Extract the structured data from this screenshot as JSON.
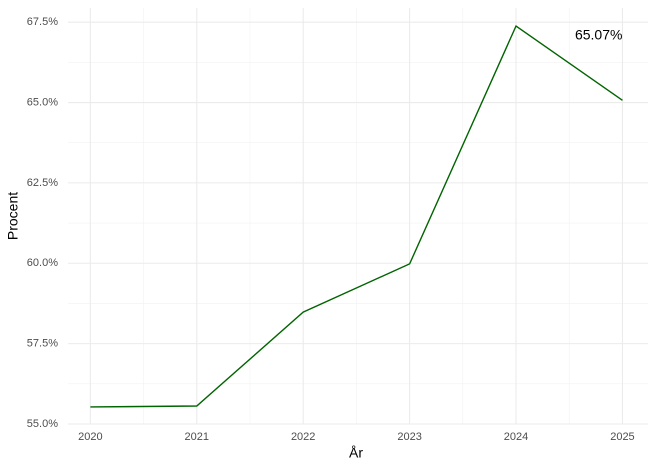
{
  "chart_data": {
    "type": "line",
    "x": [
      2020,
      2021,
      2022,
      2023,
      2024,
      2025
    ],
    "series": [
      {
        "name": "Procent",
        "color": "#006400",
        "values": [
          55.53,
          55.56,
          58.48,
          59.98,
          67.38,
          65.07
        ]
      }
    ],
    "xlim": [
      2019.79,
      2025.24
    ],
    "xticks": [
      2020,
      2021,
      2022,
      2023,
      2024,
      2025
    ],
    "ylim": [
      55.0,
      67.94
    ],
    "yticks": [
      {
        "value": 55.0,
        "label": "55.0%"
      },
      {
        "value": 57.5,
        "label": "57.5%"
      },
      {
        "value": 60.0,
        "label": "60.0%"
      },
      {
        "value": 62.5,
        "label": "62.5%"
      },
      {
        "value": 65.0,
        "label": "65.0%"
      },
      {
        "value": 67.5,
        "label": "67.5%"
      }
    ],
    "x_label": "År",
    "y_label": "Procent",
    "annotation": "65.07%",
    "grid": true
  }
}
